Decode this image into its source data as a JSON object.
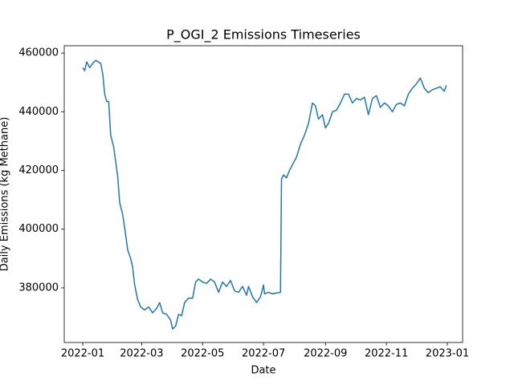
{
  "chart_data": {
    "type": "line",
    "title": "P_OGI_2 Emissions Timeseries",
    "xlabel": "Date",
    "ylabel": "Daily Emissions (kg Methane)",
    "x": [
      0,
      2,
      4,
      7,
      10,
      13,
      18,
      20,
      22,
      24,
      26,
      28,
      31,
      33,
      35,
      37,
      40,
      43,
      45,
      48,
      50,
      52,
      55,
      58,
      62,
      66,
      70,
      74,
      77,
      80,
      84,
      88,
      90,
      93,
      96,
      99,
      102,
      106,
      110,
      113,
      116,
      120,
      124,
      128,
      132,
      136,
      140,
      144,
      148,
      152,
      156,
      160,
      164,
      166,
      170,
      174,
      178,
      181,
      182,
      186,
      190,
      198,
      199,
      201,
      204,
      207,
      210,
      214,
      218,
      222,
      226,
      230,
      233,
      236,
      240,
      243,
      246,
      250,
      254,
      258,
      262,
      266,
      270,
      274,
      278,
      282,
      286,
      290,
      294,
      298,
      302,
      306,
      310,
      314,
      318,
      322,
      326,
      330,
      334,
      338,
      342,
      346,
      350,
      354,
      358,
      362,
      364
    ],
    "series": [
      {
        "name": "P_OGI_2",
        "color": "#1f77b4",
        "values": [
          455000,
          454000,
          457000,
          455000,
          456500,
          457500,
          456500,
          453000,
          446000,
          443500,
          443500,
          432000,
          428000,
          423000,
          418000,
          409000,
          405000,
          398000,
          393000,
          390000,
          387000,
          381000,
          376000,
          373500,
          372500,
          373500,
          371500,
          373000,
          375000,
          371500,
          371000,
          369000,
          366000,
          367000,
          371000,
          370500,
          375000,
          376500,
          376500,
          382000,
          383000,
          382000,
          381500,
          383000,
          382000,
          378500,
          382000,
          380500,
          382500,
          379000,
          378500,
          380500,
          377500,
          380500,
          377000,
          375000,
          377000,
          381000,
          378000,
          378500,
          378000,
          378500,
          417000,
          418500,
          417500,
          420000,
          422000,
          424500,
          429000,
          432000,
          436000,
          443000,
          442000,
          437500,
          439000,
          434500,
          436000,
          440000,
          440500,
          443000,
          446000,
          446000,
          443000,
          444500,
          444000,
          445000,
          439000,
          444500,
          445500,
          441500,
          443000,
          442000,
          440000,
          442500,
          443000,
          442000,
          446000,
          448000,
          449500,
          451500,
          448000,
          446500,
          447500,
          448000,
          448500,
          447000,
          449000
        ]
      }
    ],
    "xlim": [
      -18.5,
      380.3
    ],
    "xticks": [
      {
        "value": 0,
        "label": "2022-01"
      },
      {
        "value": 59,
        "label": "2022-03"
      },
      {
        "value": 120,
        "label": "2022-05"
      },
      {
        "value": 181,
        "label": "2022-07"
      },
      {
        "value": 243,
        "label": "2022-09"
      },
      {
        "value": 304,
        "label": "2022-11"
      },
      {
        "value": 365,
        "label": "2023-01"
      }
    ],
    "ylim": [
      361400,
      462500
    ],
    "yticks": [
      380000,
      400000,
      420000,
      440000,
      460000
    ]
  }
}
